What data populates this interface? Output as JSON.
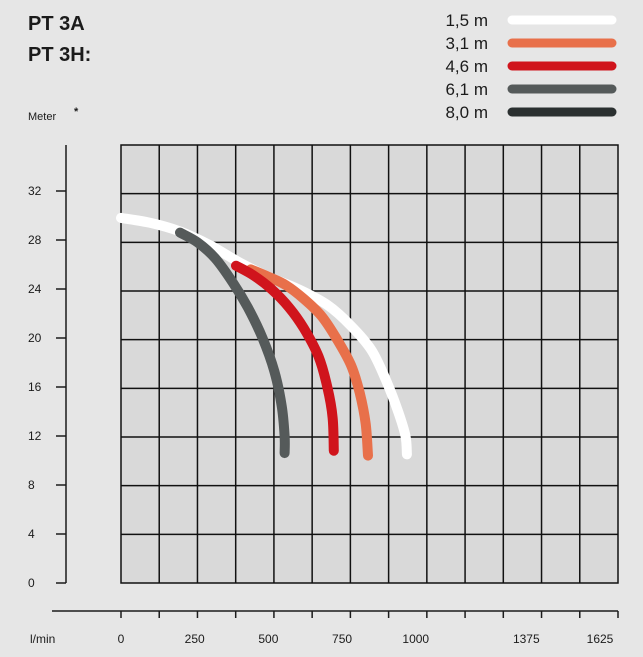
{
  "page": {
    "title_line1": "PT 3A",
    "title_line2": "PT 3H:"
  },
  "chart_data": {
    "type": "line",
    "ylabel": "Meter",
    "ylabel_mark": "*",
    "xlabel": "l/min",
    "xlim": [
      0,
      1625
    ],
    "ylim": [
      0,
      32
    ],
    "x_ticks": [
      0,
      250,
      500,
      750,
      1000,
      1375,
      1625
    ],
    "x_tick_labels": [
      "0",
      "250",
      "500",
      "750",
      "1000",
      "1375",
      "1625"
    ],
    "y_ticks": [
      0,
      4,
      8,
      12,
      16,
      20,
      24,
      28,
      32
    ],
    "y_tick_labels": [
      "0",
      "4",
      "8",
      "12",
      "16",
      "20",
      "24",
      "28",
      "32"
    ],
    "grid": true,
    "legend_position": "top-right",
    "series": [
      {
        "name": "1,5 m",
        "color": "#ffffff",
        "points": [
          [
            0,
            29.8
          ],
          [
            100,
            29.4
          ],
          [
            200,
            28.7
          ],
          [
            300,
            27.6
          ],
          [
            400,
            26.2
          ],
          [
            500,
            25.0
          ],
          [
            600,
            24.0
          ],
          [
            700,
            22.7
          ],
          [
            780,
            21.0
          ],
          [
            850,
            19.0
          ],
          [
            900,
            16.5
          ],
          [
            940,
            14.0
          ],
          [
            965,
            12.0
          ],
          [
            970,
            10.5
          ]
        ]
      },
      {
        "name": "3,1 m",
        "color": "#e8704a",
        "points": [
          [
            440,
            25.6
          ],
          [
            500,
            25.0
          ],
          [
            560,
            24.3
          ],
          [
            620,
            23.2
          ],
          [
            680,
            21.8
          ],
          [
            730,
            20.0
          ],
          [
            780,
            17.8
          ],
          [
            810,
            15.5
          ],
          [
            830,
            13.0
          ],
          [
            838,
            10.4
          ]
        ]
      },
      {
        "name": "4,6 m",
        "color": "#d0141c",
        "points": [
          [
            390,
            25.9
          ],
          [
            450,
            25.1
          ],
          [
            510,
            24.0
          ],
          [
            570,
            22.5
          ],
          [
            620,
            20.8
          ],
          [
            670,
            18.5
          ],
          [
            700,
            16.0
          ],
          [
            718,
            13.5
          ],
          [
            722,
            10.8
          ]
        ]
      },
      {
        "name": "6,1 m",
        "color": "#555a5a",
        "points": [
          [
            200,
            28.6
          ],
          [
            260,
            27.8
          ],
          [
            320,
            26.5
          ],
          [
            380,
            24.5
          ],
          [
            430,
            22.5
          ],
          [
            480,
            20.0
          ],
          [
            520,
            17.3
          ],
          [
            545,
            14.5
          ],
          [
            555,
            12.0
          ],
          [
            555,
            10.6
          ]
        ]
      },
      {
        "name": "8,0 m",
        "color": "#2b3030",
        "points": []
      }
    ]
  }
}
